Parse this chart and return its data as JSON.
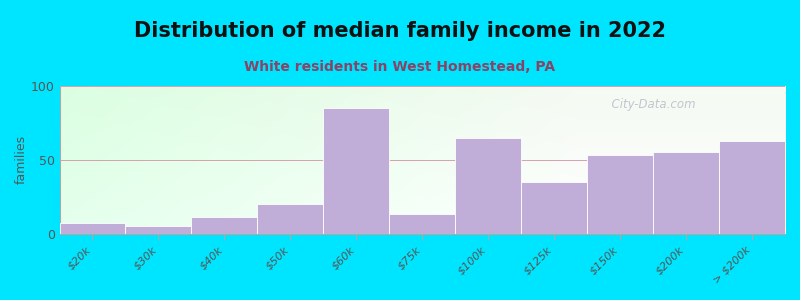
{
  "title": "Distribution of median family income in 2022",
  "subtitle": "White residents in West Homestead, PA",
  "categories": [
    "$20k",
    "$30k",
    "$40k",
    "$50k",
    "$60k",
    "$75k",
    "$100k",
    "$125k",
    "$150k",
    "$200k",
    "> $200k"
  ],
  "values": [
    7,
    5,
    11,
    20,
    85,
    13,
    65,
    35,
    53,
    55,
    63
  ],
  "bar_color": "#c0aed8",
  "background_color": "#00e5ff",
  "ylabel": "families",
  "ylim": [
    0,
    100
  ],
  "yticks": [
    0,
    50,
    100
  ],
  "title_fontsize": 15,
  "subtitle_fontsize": 10,
  "watermark": "  City-Data.com",
  "grid_color": "#e0a0a0",
  "subtitle_color": "#884466"
}
